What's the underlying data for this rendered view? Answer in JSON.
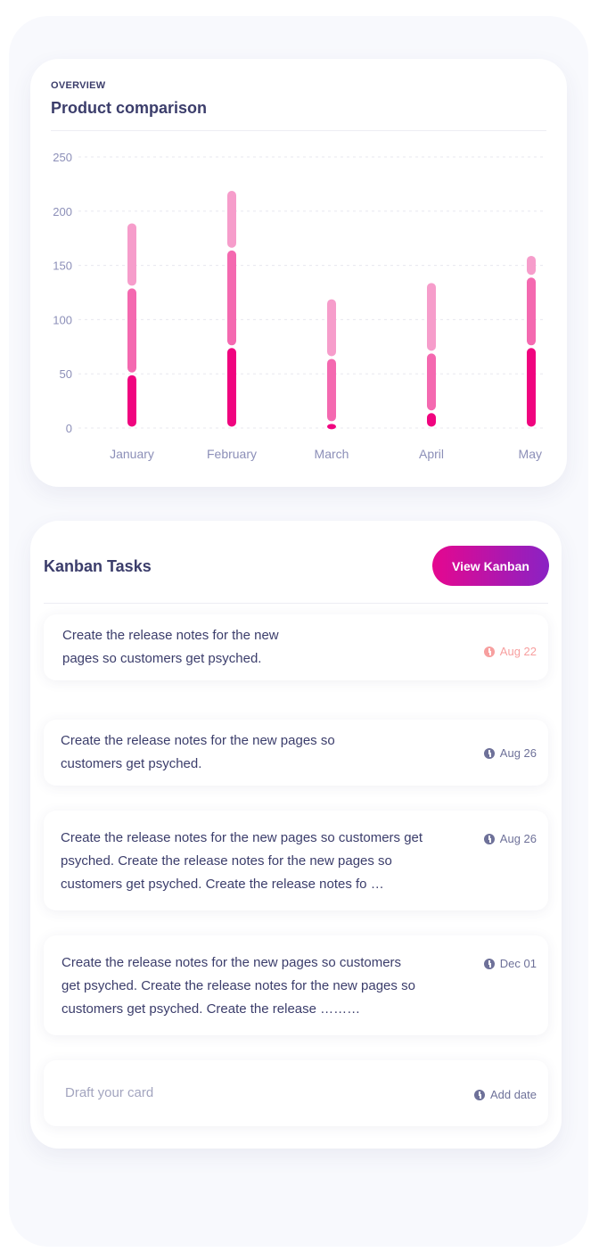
{
  "overview": {
    "eyebrow": "OVERVIEW",
    "title": "Product comparison"
  },
  "chart_data": {
    "type": "bar",
    "stacked": true,
    "categories": [
      "January",
      "February",
      "March",
      "April",
      "May"
    ],
    "series": [
      {
        "values": [
          50,
          75,
          5,
          15,
          75
        ],
        "color": "#f0047f"
      },
      {
        "values": [
          80,
          90,
          60,
          55,
          65
        ],
        "color": "#f469b0"
      },
      {
        "values": [
          60,
          55,
          55,
          65,
          20
        ],
        "color": "#f69dcb"
      }
    ],
    "yticks": [
      0,
      50,
      100,
      150,
      200,
      250
    ],
    "ylim": [
      0,
      250
    ],
    "grid": true
  },
  "kanban": {
    "title": "Kanban Tasks",
    "view_button": "View Kanban",
    "tasks": [
      {
        "lines": [
          "Create the release notes for the new",
          "pages so customers get psyched."
        ],
        "date": "Aug 22",
        "overdue": true
      },
      {
        "lines": [
          "Create the release notes for the new pages so",
          "customers get psyched."
        ],
        "date": "Aug 26"
      },
      {
        "lines": [
          "Create the release notes for the new pages so customers get",
          "psyched. Create the release notes for the new pages so",
          "customers get psyched.  Create the release notes fo …"
        ],
        "date": "Aug 26"
      },
      {
        "lines": [
          "Create the release notes for the new pages so customers",
          "get psyched. Create the release notes for the new pages so",
          "customers get psyched.  Create the release ………"
        ],
        "date": "Dec 01"
      }
    ],
    "draft_placeholder": "Draft your card",
    "add_date": "Add date"
  }
}
